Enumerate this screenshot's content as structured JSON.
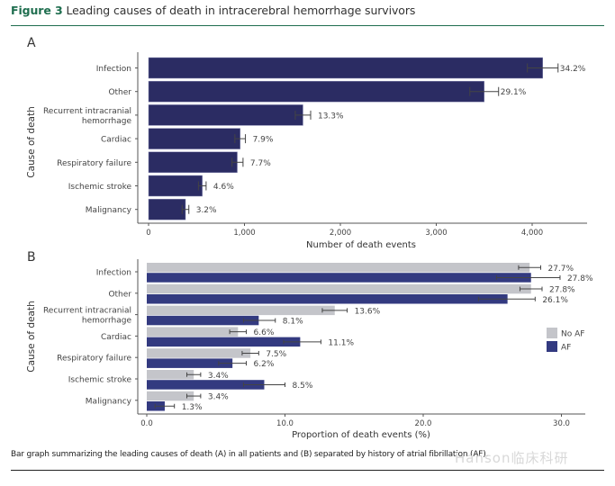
{
  "figure": {
    "number_label": "Figure 3",
    "title": "Leading causes of death in intracerebral hemorrhage survivors",
    "caption": "Bar graph summarizing the leading causes of death (A) in all patients and (B) separated by history of atrial fibrillation (AF).",
    "watermark": "Hanson临床科研"
  },
  "colors": {
    "navy": "#2b2c63",
    "af": "#333a80",
    "no_af": "#c4c5ca",
    "axis": "#555555",
    "title_green": "#1f6e4f"
  },
  "chart_data": [
    {
      "panel": "A",
      "type": "bar",
      "orientation": "horizontal",
      "xlabel": "Number of death events",
      "ylabel": "Cause of death",
      "xlim": [
        0,
        4500
      ],
      "xticks": [
        0,
        1000,
        2000,
        3000,
        4000
      ],
      "xtick_labels": [
        "0",
        "1,000",
        "2,000",
        "3,000",
        "4,000"
      ],
      "grid": false,
      "categories": [
        "Infection",
        "Other",
        "Recurrent intracranial\nhemorrhage",
        "Cardiac",
        "Respiratory failure",
        "Ischemic stroke",
        "Malignancy"
      ],
      "values": [
        4110,
        3500,
        1610,
        955,
        925,
        560,
        385
      ],
      "error_low": [
        3950,
        3350,
        1530,
        900,
        870,
        520,
        350
      ],
      "error_high": [
        4270,
        3650,
        1690,
        1010,
        985,
        600,
        420
      ],
      "labels": [
        "34.2%",
        "29.1%",
        "13.3%",
        "7.9%",
        "7.7%",
        "4.6%",
        "3.2%"
      ]
    },
    {
      "panel": "B",
      "type": "bar",
      "orientation": "horizontal",
      "xlabel": "Proportion of death events (%)",
      "ylabel": "Cause of death",
      "xlim": [
        0,
        32
      ],
      "xticks": [
        0,
        10,
        20,
        30
      ],
      "xtick_labels": [
        "0.0",
        "10.0",
        "20.0",
        "30.0"
      ],
      "grid": false,
      "legend": {
        "position": "right",
        "entries": [
          "No AF",
          "AF"
        ]
      },
      "categories": [
        "Infection",
        "Other",
        "Recurrent intracranial\nhemorrhage",
        "Cardiac",
        "Respiratory failure",
        "Ischemic stroke",
        "Malignancy"
      ],
      "series": [
        {
          "name": "No AF",
          "values": [
            27.7,
            27.8,
            13.6,
            6.6,
            7.5,
            3.4,
            3.4
          ],
          "error_low": [
            26.9,
            27.0,
            12.7,
            6.0,
            6.9,
            2.9,
            2.9
          ],
          "error_high": [
            28.5,
            28.6,
            14.5,
            7.2,
            8.1,
            3.9,
            3.9
          ],
          "labels": [
            "27.7%",
            "27.8%",
            "13.6%",
            "6.6%",
            "7.5%",
            "3.4%",
            "3.4%"
          ]
        },
        {
          "name": "AF",
          "values": [
            27.8,
            26.1,
            8.1,
            11.1,
            6.2,
            8.5,
            1.3
          ],
          "error_low": [
            25.3,
            24.0,
            7.0,
            9.9,
            5.2,
            7.0,
            0.6
          ],
          "error_high": [
            29.9,
            28.1,
            9.3,
            12.6,
            7.2,
            10.0,
            2.0
          ],
          "labels": [
            "27.8%",
            "26.1%",
            "8.1%",
            "11.1%",
            "6.2%",
            "8.5%",
            "1.3%"
          ]
        }
      ]
    }
  ]
}
